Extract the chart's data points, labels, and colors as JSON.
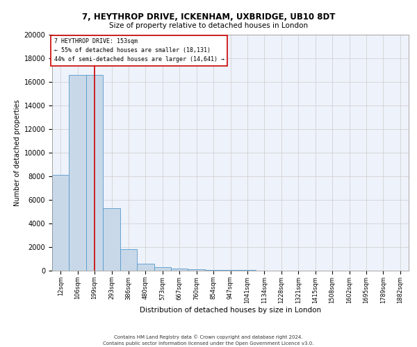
{
  "title_line1": "7, HEYTHROP DRIVE, ICKENHAM, UXBRIDGE, UB10 8DT",
  "title_line2": "Size of property relative to detached houses in London",
  "xlabel": "Distribution of detached houses by size in London",
  "ylabel": "Number of detached properties",
  "annotation_title": "7 HEYTHROP DRIVE: 153sqm",
  "annotation_line1": "← 55% of detached houses are smaller (18,131)",
  "annotation_line2": "44% of semi-detached houses are larger (14,641) →",
  "footer_line1": "Contains HM Land Registry data © Crown copyright and database right 2024.",
  "footer_line2": "Contains public sector information licensed under the Open Government Licence v3.0.",
  "bin_labels": [
    "12sqm",
    "106sqm",
    "199sqm",
    "293sqm",
    "386sqm",
    "480sqm",
    "573sqm",
    "667sqm",
    "760sqm",
    "854sqm",
    "947sqm",
    "1041sqm",
    "1134sqm",
    "1228sqm",
    "1321sqm",
    "1415sqm",
    "1508sqm",
    "1602sqm",
    "1695sqm",
    "1789sqm",
    "1882sqm"
  ],
  "bar_values": [
    8100,
    16600,
    16600,
    5300,
    1800,
    600,
    300,
    200,
    100,
    50,
    50,
    30,
    20,
    15,
    10,
    10,
    5,
    5,
    5,
    5,
    5
  ],
  "bar_color": "#c8d8e8",
  "bar_edge_color": "#5599cc",
  "vline_color": "#cc0000",
  "ylim": [
    0,
    20000
  ],
  "yticks": [
    0,
    2000,
    4000,
    6000,
    8000,
    10000,
    12000,
    14000,
    16000,
    18000,
    20000
  ],
  "grid_color": "#cccccc",
  "background_color": "#eef2fa",
  "box_edge_color": "#cc0000"
}
